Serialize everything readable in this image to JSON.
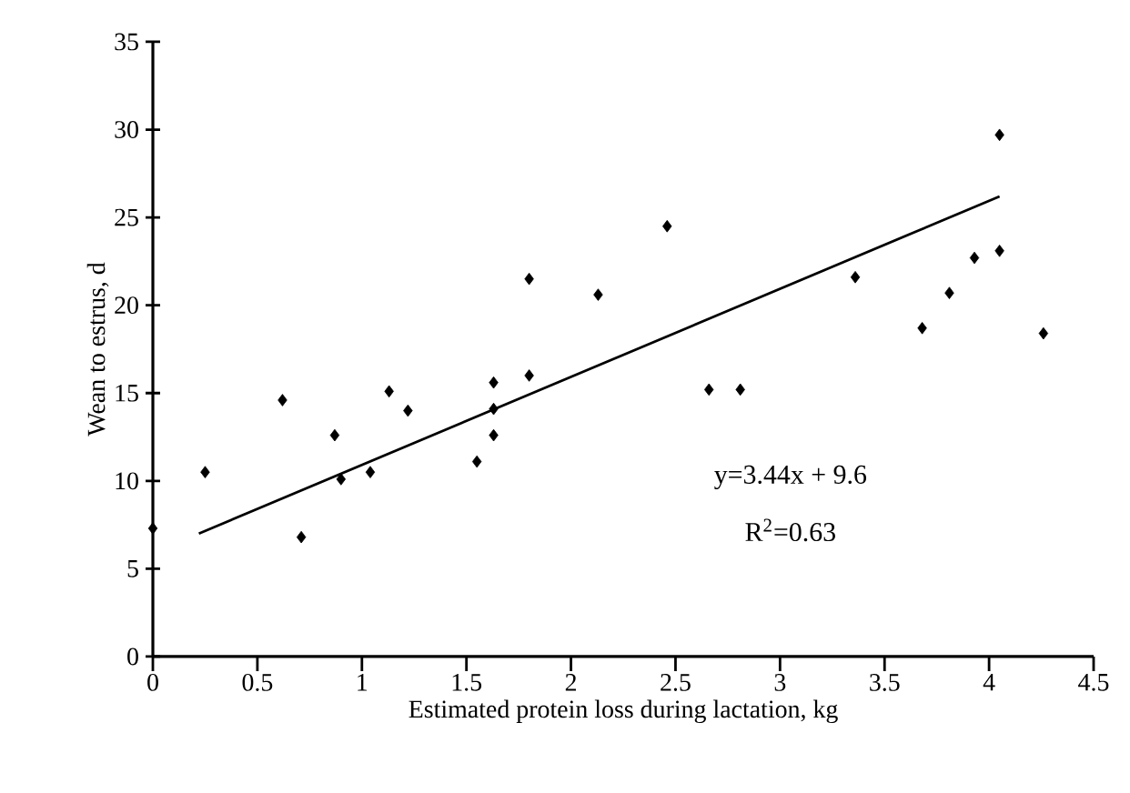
{
  "chart_data": {
    "type": "scatter",
    "xlabel": "Estimated protein loss during lactation, kg",
    "ylabel": "Wean to estrus, d",
    "xlim": [
      0,
      4.5
    ],
    "ylim": [
      0,
      35
    ],
    "xticks": [
      0,
      0.5,
      1,
      1.5,
      2,
      2.5,
      3,
      3.5,
      4,
      4.5
    ],
    "yticks": [
      0,
      5,
      10,
      15,
      20,
      25,
      30,
      35
    ],
    "grid": false,
    "marker": "diamond",
    "series": [
      {
        "type": "scatter",
        "color": "#000000",
        "x": [
          0.0,
          0.25,
          0.62,
          0.71,
          0.87,
          0.9,
          1.04,
          1.13,
          1.22,
          1.55,
          1.63,
          1.63,
          1.63,
          1.8,
          1.8,
          2.13,
          2.46,
          2.66,
          2.81,
          3.36,
          3.68,
          3.81,
          3.93,
          4.05,
          4.05,
          4.26
        ],
        "values": [
          7.3,
          10.5,
          14.6,
          6.8,
          12.6,
          10.1,
          10.5,
          15.1,
          14.0,
          11.1,
          15.6,
          12.6,
          14.1,
          21.5,
          16.0,
          20.6,
          24.5,
          15.2,
          15.2,
          21.6,
          18.7,
          20.7,
          22.7,
          29.7,
          23.1,
          18.4
        ]
      },
      {
        "type": "line",
        "color": "#000000",
        "marker": "none",
        "x": [
          0.22,
          4.05
        ],
        "values": [
          7.0,
          26.2
        ]
      }
    ],
    "annotations": [
      "y=3.44x + 9.6",
      "R$^{2}$=0.63"
    ]
  }
}
